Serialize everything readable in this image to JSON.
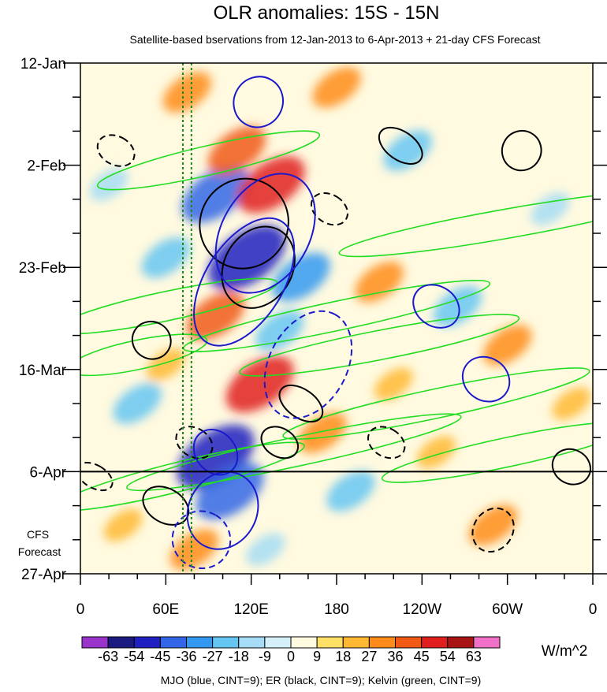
{
  "chart_data": {
    "type": "heatmap",
    "title": "OLR anomalies: 15S - 15N",
    "subtitle": "Satellite-based bservations from 12-Jan-2013 to 6-Apr-2013 + 21-day CFS Forecast",
    "x_ticks": [
      "0",
      "60E",
      "120E",
      "180",
      "120W",
      "60W",
      "0"
    ],
    "x_values": [
      0,
      60,
      120,
      180,
      240,
      300,
      360
    ],
    "xlim": [
      0,
      360
    ],
    "y_ticks": [
      "12-Jan",
      "2-Feb",
      "23-Feb",
      "16-Mar",
      "6-Apr",
      "27-Apr"
    ],
    "y_day_values": [
      0,
      21,
      42,
      63,
      84,
      105
    ],
    "ylim": [
      0,
      105
    ],
    "y_reversed": true,
    "observation_end": "6-Apr",
    "forecast_label": "CFS\nForecast",
    "mjo_reference_lines_lon": [
      72,
      78
    ],
    "colorbar": {
      "labels": [
        "-63",
        "-54",
        "-45",
        "-36",
        "-27",
        "-18",
        "-9",
        "0",
        "9",
        "18",
        "27",
        "36",
        "45",
        "54",
        "63"
      ],
      "colors": [
        "#9933cc",
        "#1a1a80",
        "#2020c0",
        "#3366e6",
        "#3399f0",
        "#66c6f2",
        "#a6dcf5",
        "#d6f0fa",
        "#fffae0",
        "#ffe066",
        "#ffb833",
        "#ff8c1a",
        "#f05a14",
        "#e01e1e",
        "#a61414",
        "#f070c8"
      ],
      "units": "W/m^2"
    },
    "contours_legend": "MJO (blue, CINT=9); ER (black, CINT=9); Kelvin (green, CINT=9)",
    "contour_colors": {
      "mjo": "#1a1acc",
      "er": "#000000",
      "kelvin": "#22dd22"
    },
    "anomaly_features": [
      {
        "lon": 95,
        "day": 27,
        "value": -45
      },
      {
        "lon": 117,
        "day": 40,
        "value": -54
      },
      {
        "lon": 134,
        "day": 25,
        "value": 45
      },
      {
        "lon": 110,
        "day": 18,
        "value": 36
      },
      {
        "lon": 155,
        "day": 44,
        "value": -36
      },
      {
        "lon": 95,
        "day": 81,
        "value": -54
      },
      {
        "lon": 105,
        "day": 88,
        "value": -45
      },
      {
        "lon": 126,
        "day": 66,
        "value": 45
      },
      {
        "lon": 95,
        "day": 52,
        "value": 36
      },
      {
        "lon": 60,
        "day": 40,
        "value": -27
      },
      {
        "lon": 75,
        "day": 6,
        "value": 27
      },
      {
        "lon": 210,
        "day": 45,
        "value": 27
      },
      {
        "lon": 265,
        "day": 50,
        "value": -27
      },
      {
        "lon": 300,
        "day": 58,
        "value": 27
      },
      {
        "lon": 230,
        "day": 18,
        "value": -27
      },
      {
        "lon": 40,
        "day": 70,
        "value": -27
      },
      {
        "lon": 170,
        "day": 76,
        "value": 27
      },
      {
        "lon": 190,
        "day": 88,
        "value": -27
      },
      {
        "lon": 290,
        "day": 95,
        "value": 27
      },
      {
        "lon": 30,
        "day": 95,
        "value": 18
      },
      {
        "lon": 330,
        "day": 30,
        "value": -18
      },
      {
        "lon": 180,
        "day": 5,
        "value": 27
      },
      {
        "lon": 250,
        "day": 80,
        "value": 18
      },
      {
        "lon": 130,
        "day": 100,
        "value": -18
      },
      {
        "lon": 80,
        "day": 100,
        "value": 27
      },
      {
        "lon": 20,
        "day": 25,
        "value": -18
      },
      {
        "lon": 345,
        "day": 70,
        "value": 18
      },
      {
        "lon": 140,
        "day": 55,
        "value": -27
      },
      {
        "lon": 60,
        "day": 62,
        "value": 18
      },
      {
        "lon": 220,
        "day": 66,
        "value": 18
      }
    ],
    "contours": {
      "mjo": [
        {
          "lon": 130,
          "day": 35,
          "rx": 45,
          "ry": 9,
          "angle": -60,
          "dashed": false
        },
        {
          "lon": 115,
          "day": 45,
          "rx": 50,
          "ry": 8,
          "angle": -58,
          "dashed": false
        },
        {
          "lon": 100,
          "day": 92,
          "rx": 28,
          "ry": 7,
          "angle": -62,
          "dashed": false
        },
        {
          "lon": 95,
          "day": 80,
          "rx": 14,
          "ry": 5,
          "angle": -40,
          "dashed": false
        },
        {
          "lon": 285,
          "day": 65,
          "rx": 15,
          "ry": 5,
          "angle": -55,
          "dashed": false
        },
        {
          "lon": 160,
          "day": 62,
          "rx": 40,
          "ry": 8,
          "angle": -62,
          "dashed": true
        },
        {
          "lon": 85,
          "day": 98,
          "rx": 20,
          "ry": 6,
          "angle": -60,
          "dashed": true
        },
        {
          "lon": 250,
          "day": 50,
          "rx": 14,
          "ry": 5,
          "angle": -55,
          "dashed": false
        },
        {
          "lon": 125,
          "day": 8,
          "rx": 18,
          "ry": 5,
          "angle": -60,
          "dashed": false
        }
      ],
      "er": [
        {
          "lon": 115,
          "day": 33,
          "rx": 32,
          "ry": 9,
          "angle": -55,
          "dashed": false
        },
        {
          "lon": 125,
          "day": 42,
          "rx": 30,
          "ry": 7,
          "angle": -60,
          "dashed": false
        },
        {
          "lon": 225,
          "day": 17,
          "rx": 10,
          "ry": 5,
          "angle": -55,
          "dashed": false
        },
        {
          "lon": 310,
          "day": 18,
          "rx": 14,
          "ry": 4,
          "angle": -60,
          "dashed": false
        },
        {
          "lon": 155,
          "day": 70,
          "rx": 10,
          "ry": 5,
          "angle": -55,
          "dashed": false
        },
        {
          "lon": 50,
          "day": 57,
          "rx": 13,
          "ry": 4,
          "angle": -60,
          "dashed": false
        },
        {
          "lon": 60,
          "day": 91,
          "rx": 12,
          "ry": 5,
          "angle": -60,
          "dashed": false
        },
        {
          "lon": 345,
          "day": 83,
          "rx": 12,
          "ry": 4,
          "angle": -62,
          "dashed": false
        },
        {
          "lon": 80,
          "day": 78,
          "rx": 10,
          "ry": 4,
          "angle": -58,
          "dashed": true
        },
        {
          "lon": 175,
          "day": 30,
          "rx": 10,
          "ry": 4,
          "angle": -58,
          "dashed": true
        },
        {
          "lon": 215,
          "day": 78,
          "rx": 10,
          "ry": 4,
          "angle": -60,
          "dashed": true
        },
        {
          "lon": 290,
          "day": 96,
          "rx": 16,
          "ry": 4,
          "angle": -55,
          "dashed": true
        },
        {
          "lon": 25,
          "day": 18,
          "rx": 10,
          "ry": 4,
          "angle": -62,
          "dashed": true
        },
        {
          "lon": 10,
          "day": 85,
          "rx": 8,
          "ry": 4,
          "angle": -60,
          "dashed": true
        },
        {
          "lon": 140,
          "day": 78,
          "rx": 10,
          "ry": 4,
          "angle": -60,
          "dashed": false
        }
      ],
      "kelvin": [
        {
          "lon": 180,
          "day": 52,
          "rx": 110,
          "ry": 3,
          "angle": -12,
          "dashed": false
        },
        {
          "lon": 150,
          "day": 80,
          "rx": 120,
          "ry": 3,
          "angle": -12,
          "dashed": false
        },
        {
          "lon": 210,
          "day": 58,
          "rx": 100,
          "ry": 3,
          "angle": -11,
          "dashed": false
        },
        {
          "lon": 300,
          "day": 33,
          "rx": 120,
          "ry": 3,
          "angle": -10,
          "dashed": false
        },
        {
          "lon": 90,
          "day": 20,
          "rx": 80,
          "ry": 3,
          "angle": -13,
          "dashed": false
        },
        {
          "lon": 70,
          "day": 85,
          "rx": 90,
          "ry": 3,
          "angle": -14,
          "dashed": false
        },
        {
          "lon": 250,
          "day": 70,
          "rx": 110,
          "ry": 3,
          "angle": -12,
          "dashed": false
        },
        {
          "lon": 60,
          "day": 50,
          "rx": 80,
          "ry": 3,
          "angle": -12,
          "dashed": false
        },
        {
          "lon": 300,
          "day": 80,
          "rx": 90,
          "ry": 3,
          "angle": -12,
          "dashed": false
        },
        {
          "lon": 40,
          "day": 60,
          "rx": 50,
          "ry": 3,
          "angle": -12,
          "dashed": false
        }
      ]
    }
  }
}
